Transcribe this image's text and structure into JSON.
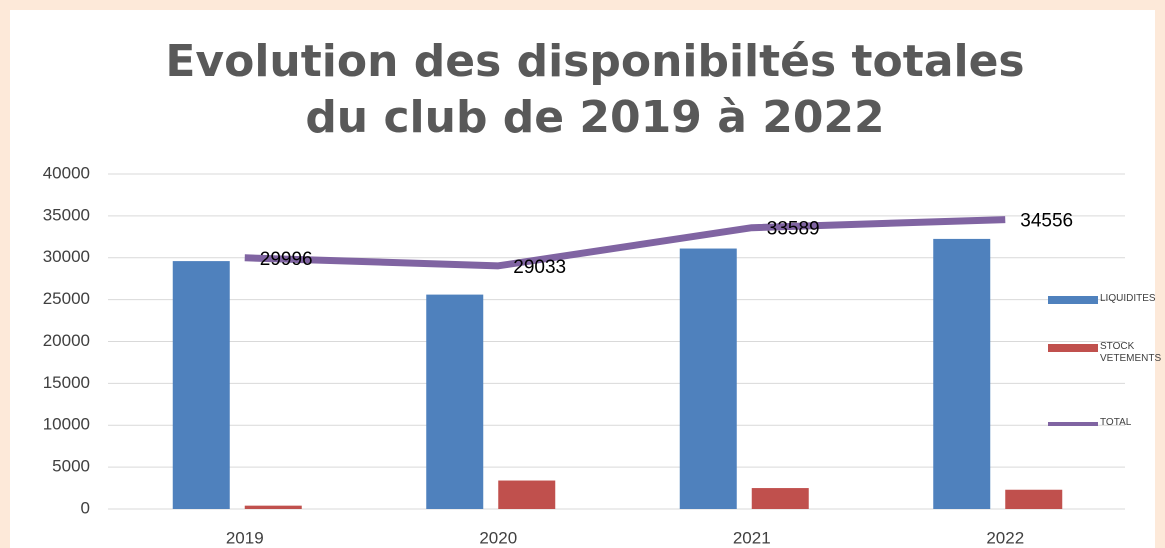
{
  "chart_data": {
    "type": "bar-line",
    "title": "Evolution des disponibiltés totales du club de 2019 à 2022",
    "categories": [
      "2019",
      "2020",
      "2021",
      "2022"
    ],
    "series": [
      {
        "name": "LIQUIDITES",
        "type": "bar",
        "color": "#4f81bd",
        "values": [
          29600,
          25600,
          31100,
          32250
        ]
      },
      {
        "name": "STOCK VETEMENTS",
        "type": "bar",
        "color": "#c0504d",
        "values": [
          400,
          3400,
          2500,
          2300
        ]
      },
      {
        "name": "TOTAL",
        "type": "line",
        "color": "#8064a2",
        "values": [
          29996,
          29033,
          33589,
          34556
        ]
      }
    ],
    "ylim": [
      0,
      40000
    ],
    "yticks": [
      0,
      5000,
      10000,
      15000,
      20000,
      25000,
      30000,
      35000,
      40000
    ],
    "grid": true,
    "legend": "right"
  }
}
